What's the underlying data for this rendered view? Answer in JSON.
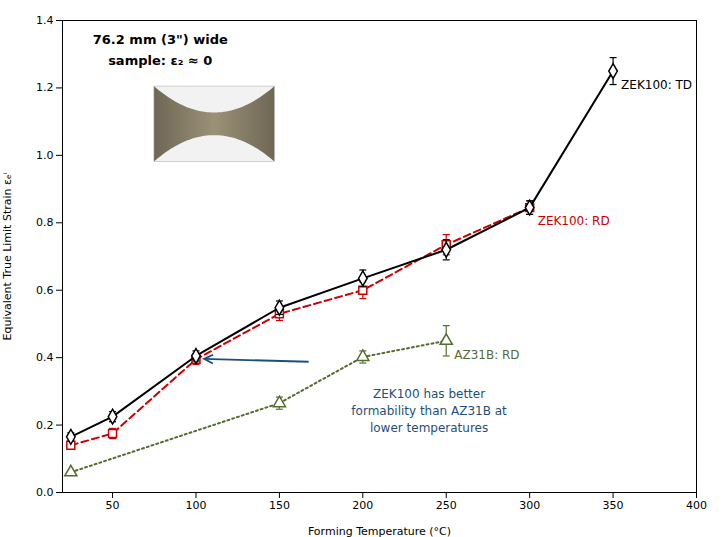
{
  "chart_data": {
    "type": "line",
    "xlabel": "Forming Temperature (°C)",
    "ylabel": "Equivalent True Limit Strain εₑⁱ",
    "xlim": [
      20,
      400
    ],
    "ylim": [
      0,
      1.4
    ],
    "xticks": [
      50,
      100,
      150,
      200,
      250,
      300,
      350,
      400
    ],
    "yticks": [
      {
        "value": 0,
        "label": "0.0"
      },
      0.2,
      0.4,
      0.6,
      0.8,
      {
        "value": 1,
        "label": "1.0"
      },
      1.2,
      1.4
    ],
    "grid": false,
    "series": [
      {
        "name": "ZEK100: TD",
        "color": "#000000",
        "line_style": "solid",
        "marker": "diamond",
        "x": [
          25,
          50,
          100,
          150,
          200,
          250,
          300,
          350
        ],
        "values": [
          0.165,
          0.225,
          0.405,
          0.548,
          0.635,
          0.72,
          0.845,
          1.25
        ],
        "yerr": [
          0.012,
          0.015,
          0.015,
          0.02,
          0.025,
          0.03,
          0.02,
          0.04
        ]
      },
      {
        "name": "ZEK100: RD",
        "color": "#cc0000",
        "line_style": "dashed",
        "marker": "square",
        "x": [
          25,
          50,
          100,
          150,
          200,
          250,
          300
        ],
        "values": [
          0.14,
          0.175,
          0.395,
          0.53,
          0.6,
          0.735,
          0.845
        ],
        "yerr": [
          0.01,
          0.015,
          0.015,
          0.02,
          0.025,
          0.03,
          0.02
        ]
      },
      {
        "name": "AZ31B: RD",
        "color": "#556b2f",
        "line_style": "dotted",
        "marker": "triangle",
        "x": [
          25,
          150,
          200,
          250
        ],
        "values": [
          0.06,
          0.265,
          0.402,
          0.45
        ],
        "yerr": [
          0.005,
          0.018,
          0.018,
          0.045
        ]
      }
    ],
    "annotations": [
      {
        "text": "ZEK100 has better\nformability than AZ31B at\nlower temperatures",
        "color": "#1f4e79"
      },
      {
        "text": "76.2 mm (3\") wide"
      },
      {
        "text": "sample: ε₂ ≈ 0"
      }
    ]
  }
}
